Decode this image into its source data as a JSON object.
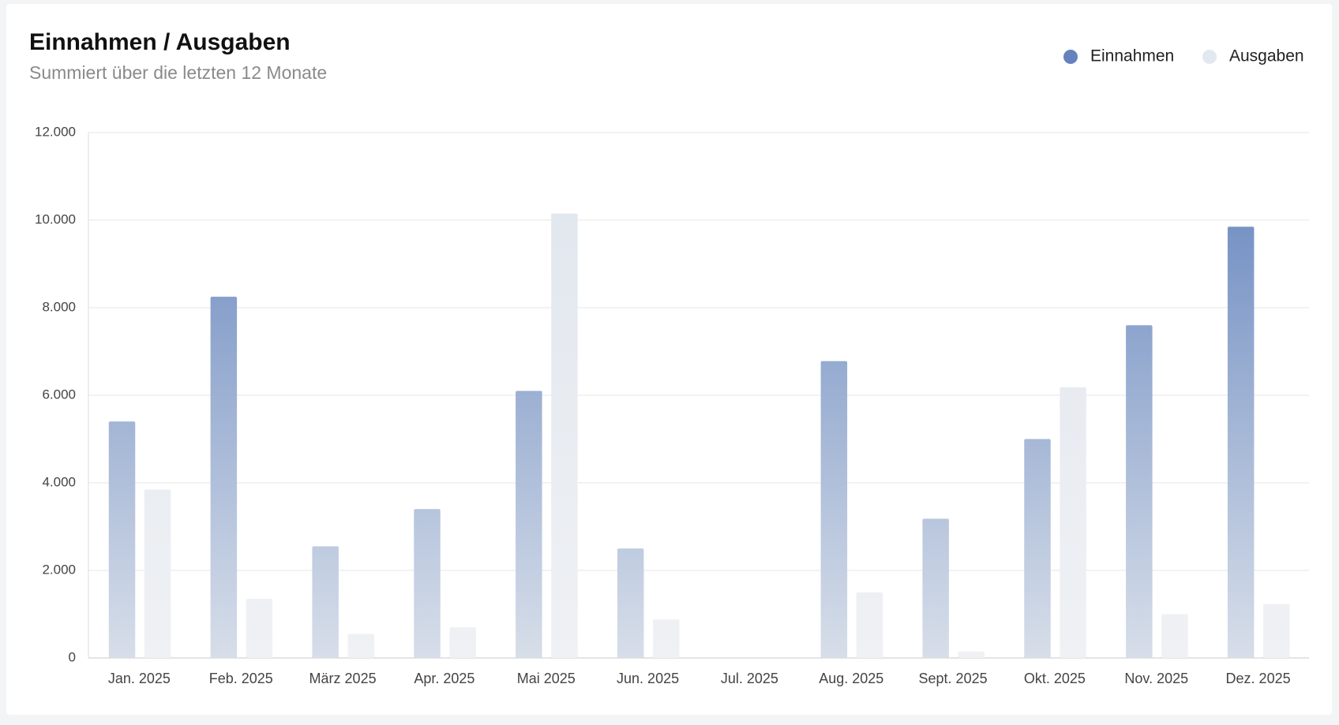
{
  "chart_data": {
    "type": "bar",
    "title": "Einnahmen / Ausgaben",
    "subtitle": "Summiert über die letzten 12 Monate",
    "categories": [
      "Jan. 2025",
      "Feb. 2025",
      "März 2025",
      "Apr. 2025",
      "Mai 2025",
      "Jun. 2025",
      "Jul. 2025",
      "Aug. 2025",
      "Sept. 2025",
      "Okt. 2025",
      "Nov. 2025",
      "Dez. 2025"
    ],
    "series": [
      {
        "name": "Einnahmen",
        "color": "#6582bd",
        "values": [
          5400,
          8250,
          2550,
          3400,
          6100,
          2500,
          0,
          6780,
          3180,
          5000,
          7600,
          9850
        ]
      },
      {
        "name": "Ausgaben",
        "color": "#e2e8f0",
        "values": [
          3850,
          1350,
          550,
          700,
          10150,
          880,
          0,
          1500,
          150,
          6180,
          1000,
          1230
        ]
      }
    ],
    "ylim": [
      0,
      12000
    ],
    "yticks": [
      0,
      {
        "value": 2000,
        "label": "2.000"
      },
      {
        "value": 4000,
        "label": "4.000"
      },
      {
        "value": 6000,
        "label": "6.000"
      },
      {
        "value": 8000,
        "label": "8.000"
      },
      {
        "value": 10000,
        "label": "10.000"
      },
      {
        "value": 12000,
        "label": "12.000"
      }
    ],
    "grid": true,
    "legend": "top-right"
  }
}
